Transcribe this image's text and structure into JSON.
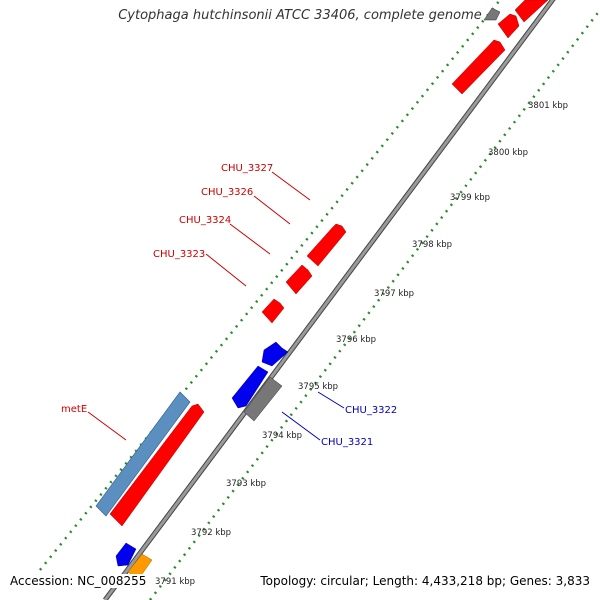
{
  "title": "Cytophaga hutchinsonii ATCC 33406, complete genome",
  "footer": {
    "accession": "Accession: NC_008255",
    "topology": "Topology: circular; Length: 4,433,218 bp; Genes: 3,833"
  },
  "ticks": [
    {
      "label": "3791 kbp"
    },
    {
      "label": "3792 kbp"
    },
    {
      "label": "3793 kbp"
    },
    {
      "label": "3794 kbp"
    },
    {
      "label": "3795 kbp"
    },
    {
      "label": "3796 kbp"
    },
    {
      "label": "3797 kbp"
    },
    {
      "label": "3798 kbp"
    },
    {
      "label": "3799 kbp"
    },
    {
      "label": "3800 kbp"
    },
    {
      "label": "3801 kbp"
    }
  ],
  "gene_labels": [
    {
      "text": "CHU_3327",
      "color": "#cc0000"
    },
    {
      "text": "CHU_3326",
      "color": "#cc0000"
    },
    {
      "text": "CHU_3324",
      "color": "#cc0000"
    },
    {
      "text": "CHU_3323",
      "color": "#cc0000"
    },
    {
      "text": "metE",
      "color": "#cc0000"
    },
    {
      "text": "CHU_3322",
      "color": "#0000bb"
    },
    {
      "text": "CHU_3321",
      "color": "#0000bb"
    }
  ],
  "colors": {
    "forward_gene": "#ff0000",
    "reverse_gene": "#0000ee",
    "rna_gene": "#5b8fc0",
    "pseudo_gene": "#777777",
    "other_gene": "#ff9900",
    "backbone": "#8c8c8c",
    "gc_track": "#2a8a2a"
  }
}
